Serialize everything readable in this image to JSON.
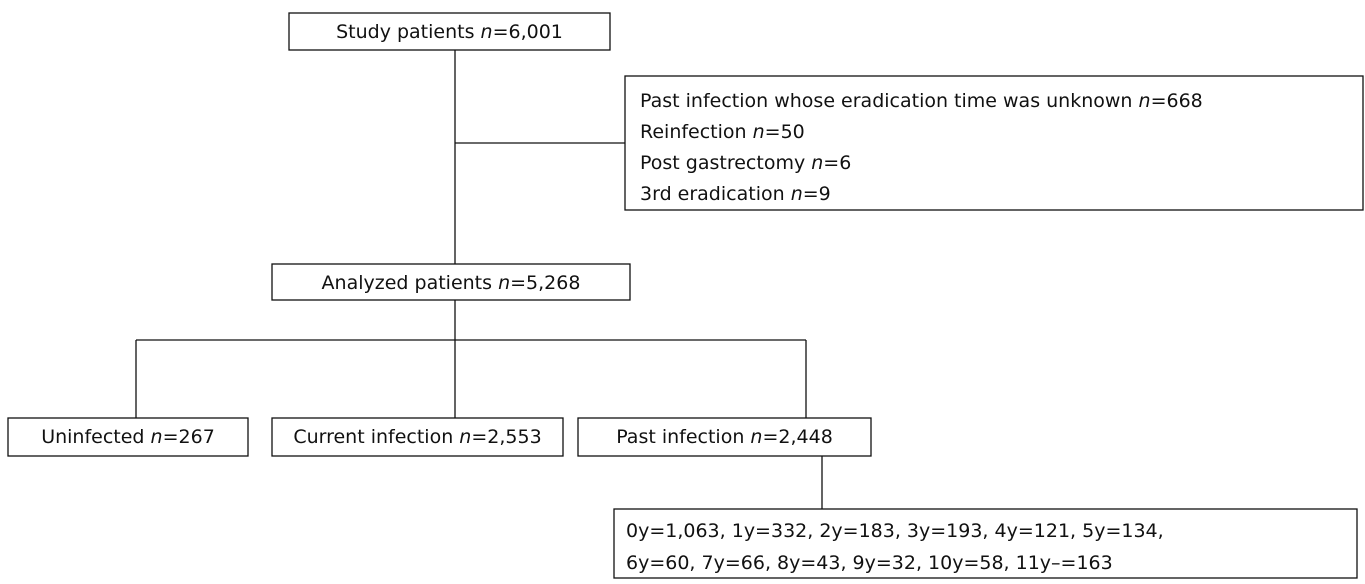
{
  "nodes": [
    {
      "lines": [
        [
          "Study patients ",
          "n",
          "=6,001"
        ]
      ]
    },
    {
      "lines": [
        [
          "Past infection whose eradication time was unknown ",
          "n",
          "=668"
        ],
        [
          "Reinfection ",
          "n",
          "=50"
        ],
        [
          "Post gastrectomy ",
          "n",
          "=6"
        ],
        [
          "3rd eradication ",
          "n",
          "=9"
        ]
      ]
    },
    {
      "lines": [
        [
          "Analyzed patients ",
          "n",
          "=5,268"
        ]
      ]
    },
    {
      "lines": [
        [
          "Uninfected ",
          "n",
          "=267"
        ]
      ]
    },
    {
      "lines": [
        [
          "Current infection ",
          "n",
          "=2,553"
        ]
      ]
    },
    {
      "lines": [
        [
          "Past infection ",
          "n",
          "=2,448"
        ]
      ]
    },
    {
      "lines": [
        [
          "0y=1,063, 1y=332, 2y=183, 3y=193, 4y=121, 5y=134,"
        ],
        [
          "6y=60, 7y=66, 8y=43, 9y=32, 10y=58, 11y–=163"
        ]
      ]
    }
  ]
}
